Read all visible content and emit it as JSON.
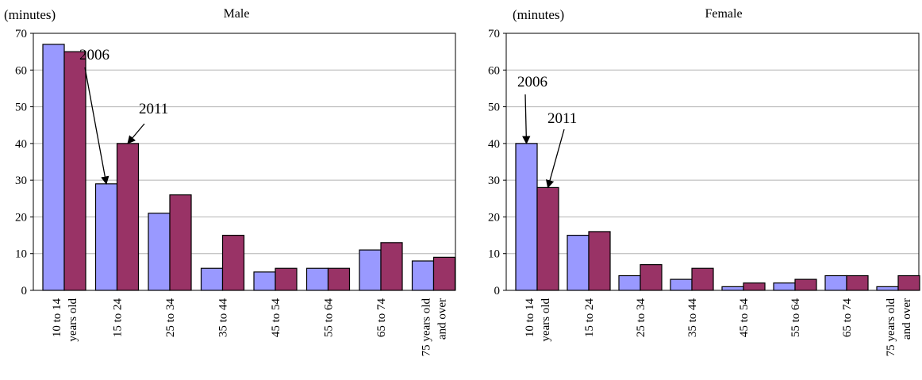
{
  "chart_data": [
    {
      "type": "bar",
      "title": "Male",
      "unit_label": "(minutes)",
      "categories": [
        [
          "10 to 14",
          "years old"
        ],
        [
          "15 to 24"
        ],
        [
          "25 to 34"
        ],
        [
          "35 to 44"
        ],
        [
          "45 to 54"
        ],
        [
          "55 to 64"
        ],
        [
          "65 to 74"
        ],
        [
          "75 years old",
          "and over"
        ]
      ],
      "series": [
        {
          "name": "2006",
          "color": "#9999ff",
          "values": [
            67,
            29,
            21,
            6,
            5,
            6,
            11,
            8
          ]
        },
        {
          "name": "2011",
          "color": "#993366",
          "values": [
            65,
            40,
            26,
            15,
            6,
            6,
            13,
            9
          ]
        }
      ],
      "ylim": [
        0,
        70
      ],
      "yticks": [
        0,
        10,
        20,
        30,
        40,
        50,
        60,
        70
      ],
      "grid": true,
      "annotations": [
        {
          "text": "2006",
          "series": 0,
          "category": 1
        },
        {
          "text": "2011",
          "series": 1,
          "category": 1
        }
      ]
    },
    {
      "type": "bar",
      "title": "Female",
      "unit_label": "(minutes)",
      "categories": [
        [
          "10 to 14",
          "years old"
        ],
        [
          "15 to 24"
        ],
        [
          "25 to 34"
        ],
        [
          "35 to 44"
        ],
        [
          "45 to 54"
        ],
        [
          "55 to 64"
        ],
        [
          "65 to 74"
        ],
        [
          "75 years old",
          "and over"
        ]
      ],
      "series": [
        {
          "name": "2006",
          "color": "#9999ff",
          "values": [
            40,
            15,
            4,
            3,
            1,
            2,
            4,
            1
          ]
        },
        {
          "name": "2011",
          "color": "#993366",
          "values": [
            28,
            16,
            7,
            6,
            2,
            3,
            4,
            4
          ]
        }
      ],
      "ylim": [
        0,
        70
      ],
      "yticks": [
        0,
        10,
        20,
        30,
        40,
        50,
        60,
        70
      ],
      "grid": true,
      "annotations": [
        {
          "text": "2006",
          "series": 0,
          "category": 0
        },
        {
          "text": "2011",
          "series": 1,
          "category": 0
        }
      ]
    }
  ]
}
